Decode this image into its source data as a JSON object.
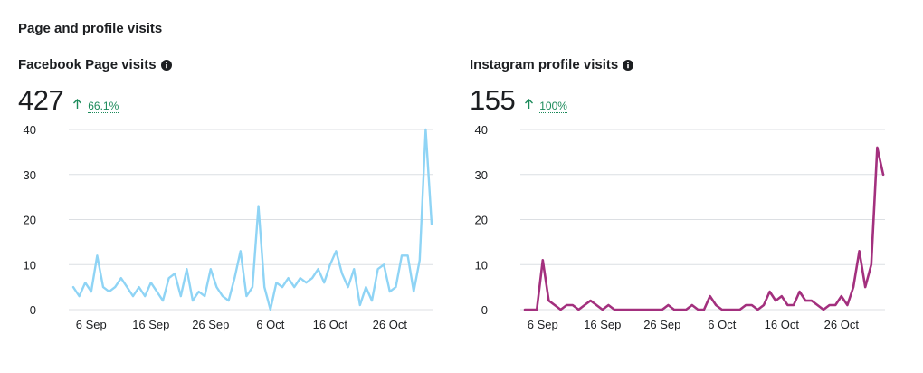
{
  "section_title": "Page and profile visits",
  "facebook": {
    "title": "Facebook Page visits",
    "info_icon": "info-icon",
    "value": "427",
    "delta_icon": "arrow-up-icon",
    "delta": "66.1%"
  },
  "instagram": {
    "title": "Instagram profile visits",
    "info_icon": "info-icon",
    "value": "155",
    "delta_icon": "arrow-up-icon",
    "delta": "100%"
  },
  "colors": {
    "facebook_line": "#8fd4f5",
    "instagram_line": "#a3307e",
    "grid": "#dcdfe3",
    "positive": "#1b8a5a"
  },
  "chart_data": [
    {
      "type": "line",
      "ylim": [
        0,
        40
      ],
      "yticks": [
        "0",
        "10",
        "20",
        "30",
        "40"
      ],
      "xticks": [
        "6 Sep",
        "16 Sep",
        "26 Sep",
        "6 Oct",
        "16 Oct",
        "26 Oct"
      ],
      "xtick_index": [
        3,
        13,
        23,
        33,
        43,
        53
      ],
      "grid": true,
      "series": [
        {
          "values": [
            5,
            3,
            6,
            4,
            12,
            5,
            4,
            5,
            7,
            5,
            3,
            5,
            3,
            6,
            4,
            2,
            7,
            8,
            3,
            9,
            2,
            4,
            3,
            9,
            5,
            3,
            2,
            7,
            13,
            3,
            5,
            23,
            5,
            0,
            6,
            5,
            7,
            5,
            7,
            6,
            7,
            9,
            6,
            10,
            13,
            8,
            5,
            9,
            1,
            5,
            2,
            9,
            10,
            4,
            5,
            12,
            12,
            4,
            11,
            40,
            19
          ]
        }
      ]
    },
    {
      "type": "line",
      "ylim": [
        0,
        40
      ],
      "yticks": [
        "0",
        "10",
        "20",
        "30",
        "40"
      ],
      "xticks": [
        "6 Sep",
        "16 Sep",
        "26 Sep",
        "6 Oct",
        "16 Oct",
        "26 Oct"
      ],
      "xtick_index": [
        3,
        13,
        23,
        33,
        43,
        53
      ],
      "grid": true,
      "series": [
        {
          "values": [
            0,
            0,
            0,
            11,
            2,
            1,
            0,
            1,
            1,
            0,
            1,
            2,
            1,
            0,
            1,
            0,
            0,
            0,
            0,
            0,
            0,
            0,
            0,
            0,
            1,
            0,
            0,
            0,
            1,
            0,
            0,
            3,
            1,
            0,
            0,
            0,
            0,
            1,
            1,
            0,
            1,
            4,
            2,
            3,
            1,
            1,
            4,
            2,
            2,
            1,
            0,
            1,
            1,
            3,
            1,
            5,
            13,
            5,
            10,
            36,
            30
          ]
        }
      ]
    }
  ]
}
